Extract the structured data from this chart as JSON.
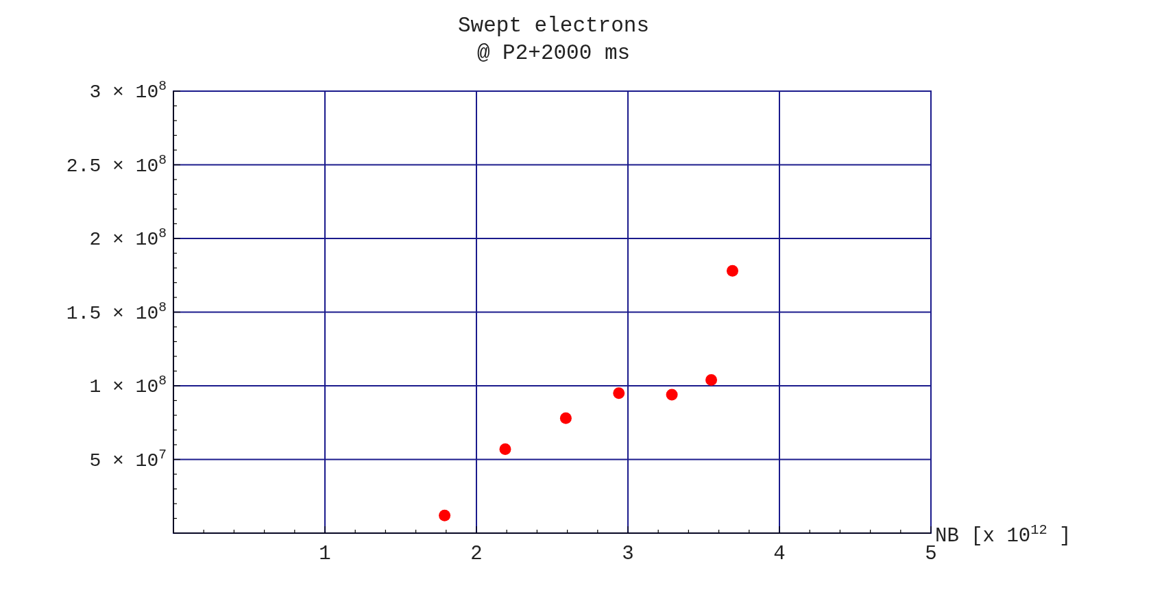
{
  "chart_data": {
    "type": "scatter",
    "title": "Swept electrons",
    "subtitle": "@ P2+2000 ms",
    "xlabel": "NB  [x 10$^{12}$ ]",
    "x": [
      1.79,
      2.19,
      2.59,
      2.94,
      3.29,
      3.55,
      3.69
    ],
    "series": [
      {
        "color": "#ff0000",
        "values": [
          12000000,
          57000000,
          78000000,
          95000000,
          94000000,
          104000000,
          178000000
        ]
      }
    ],
    "xlim": [
      0,
      5
    ],
    "ylim": [
      0,
      300000000
    ],
    "xticks": [
      {
        "value": 0.2,
        "label": null
      },
      {
        "value": 0.4,
        "label": null
      },
      {
        "value": 0.6,
        "label": null
      },
      {
        "value": 0.8,
        "label": null
      },
      1,
      {
        "value": 1.2,
        "label": null
      },
      {
        "value": 1.4,
        "label": null
      },
      {
        "value": 1.6,
        "label": null
      },
      {
        "value": 1.8,
        "label": null
      },
      2,
      {
        "value": 2.2,
        "label": null
      },
      {
        "value": 2.4,
        "label": null
      },
      {
        "value": 2.6,
        "label": null
      },
      {
        "value": 2.8,
        "label": null
      },
      3,
      {
        "value": 3.2,
        "label": null
      },
      {
        "value": 3.4,
        "label": null
      },
      {
        "value": 3.6,
        "label": null
      },
      {
        "value": 3.8,
        "label": null
      },
      4,
      {
        "value": 4.2,
        "label": null
      },
      {
        "value": 4.4,
        "label": null
      },
      {
        "value": 4.6,
        "label": null
      },
      {
        "value": 4.8,
        "label": null
      },
      5
    ],
    "yticks": [
      {
        "value": 10000000,
        "label": null
      },
      {
        "value": 20000000,
        "label": null
      },
      {
        "value": 30000000,
        "label": null
      },
      {
        "value": 40000000,
        "label": null
      },
      {
        "value": 50000000,
        "label": "5 × 10$^{7}$"
      },
      {
        "value": 60000000,
        "label": null
      },
      {
        "value": 70000000,
        "label": null
      },
      {
        "value": 80000000,
        "label": null
      },
      {
        "value": 90000000,
        "label": null
      },
      {
        "value": 100000000,
        "label": "1 × 10$^{8}$"
      },
      {
        "value": 110000000,
        "label": null
      },
      {
        "value": 120000000,
        "label": null
      },
      {
        "value": 130000000,
        "label": null
      },
      {
        "value": 140000000,
        "label": null
      },
      {
        "value": 150000000,
        "label": "1.5 × 10$^{8}$"
      },
      {
        "value": 160000000,
        "label": null
      },
      {
        "value": 170000000,
        "label": null
      },
      {
        "value": 180000000,
        "label": null
      },
      {
        "value": 190000000,
        "label": null
      },
      {
        "value": 200000000,
        "label": "2 × 10$^{8}$"
      },
      {
        "value": 210000000,
        "label": null
      },
      {
        "value": 220000000,
        "label": null
      },
      {
        "value": 230000000,
        "label": null
      },
      {
        "value": 240000000,
        "label": null
      },
      {
        "value": 250000000,
        "label": "2.5 × 10$^{8}$"
      },
      {
        "value": 260000000,
        "label": null
      },
      {
        "value": 270000000,
        "label": null
      },
      {
        "value": 280000000,
        "label": null
      },
      {
        "value": 290000000,
        "label": null
      },
      {
        "value": 300000000,
        "label": "3 × 10$^{8}$"
      }
    ],
    "grid": true,
    "marker": "circle"
  }
}
